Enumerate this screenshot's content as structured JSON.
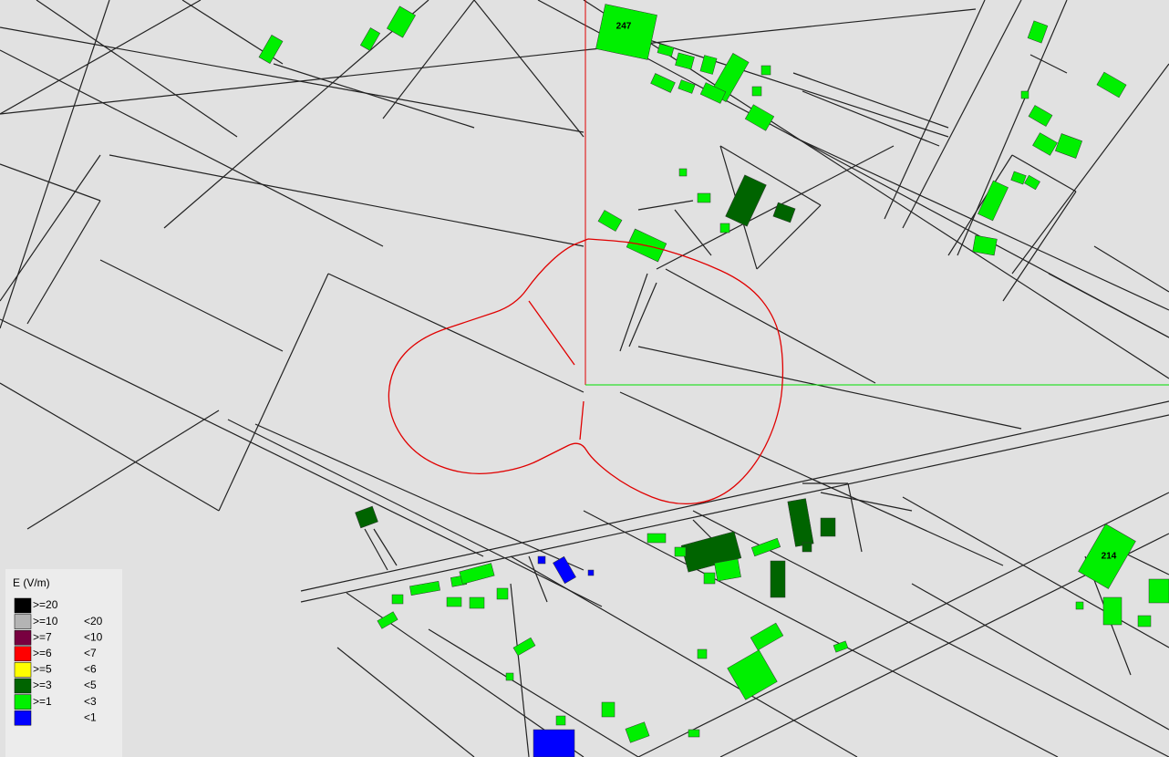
{
  "map": {
    "building_labels": [
      "247",
      "214"
    ],
    "legend": {
      "title": "E (V/m)",
      "rows": [
        {
          "color": "#000000",
          "min": ">=20"
        },
        {
          "color": "#b4b4b4",
          "min": ">=10",
          "max": "<20"
        },
        {
          "color": "#780040",
          "min": ">=7",
          "max": "<10"
        },
        {
          "color": "#ff0000",
          "min": ">=6",
          "max": "<7"
        },
        {
          "color": "#ffff00",
          "min": ">=5",
          "max": "<6"
        },
        {
          "color": "#006400",
          "min": ">=3",
          "max": "<5"
        },
        {
          "color": "#00f000",
          "min": ">=1",
          "max": "<3"
        },
        {
          "color": "#0000ff",
          "max": "<1"
        }
      ]
    }
  }
}
